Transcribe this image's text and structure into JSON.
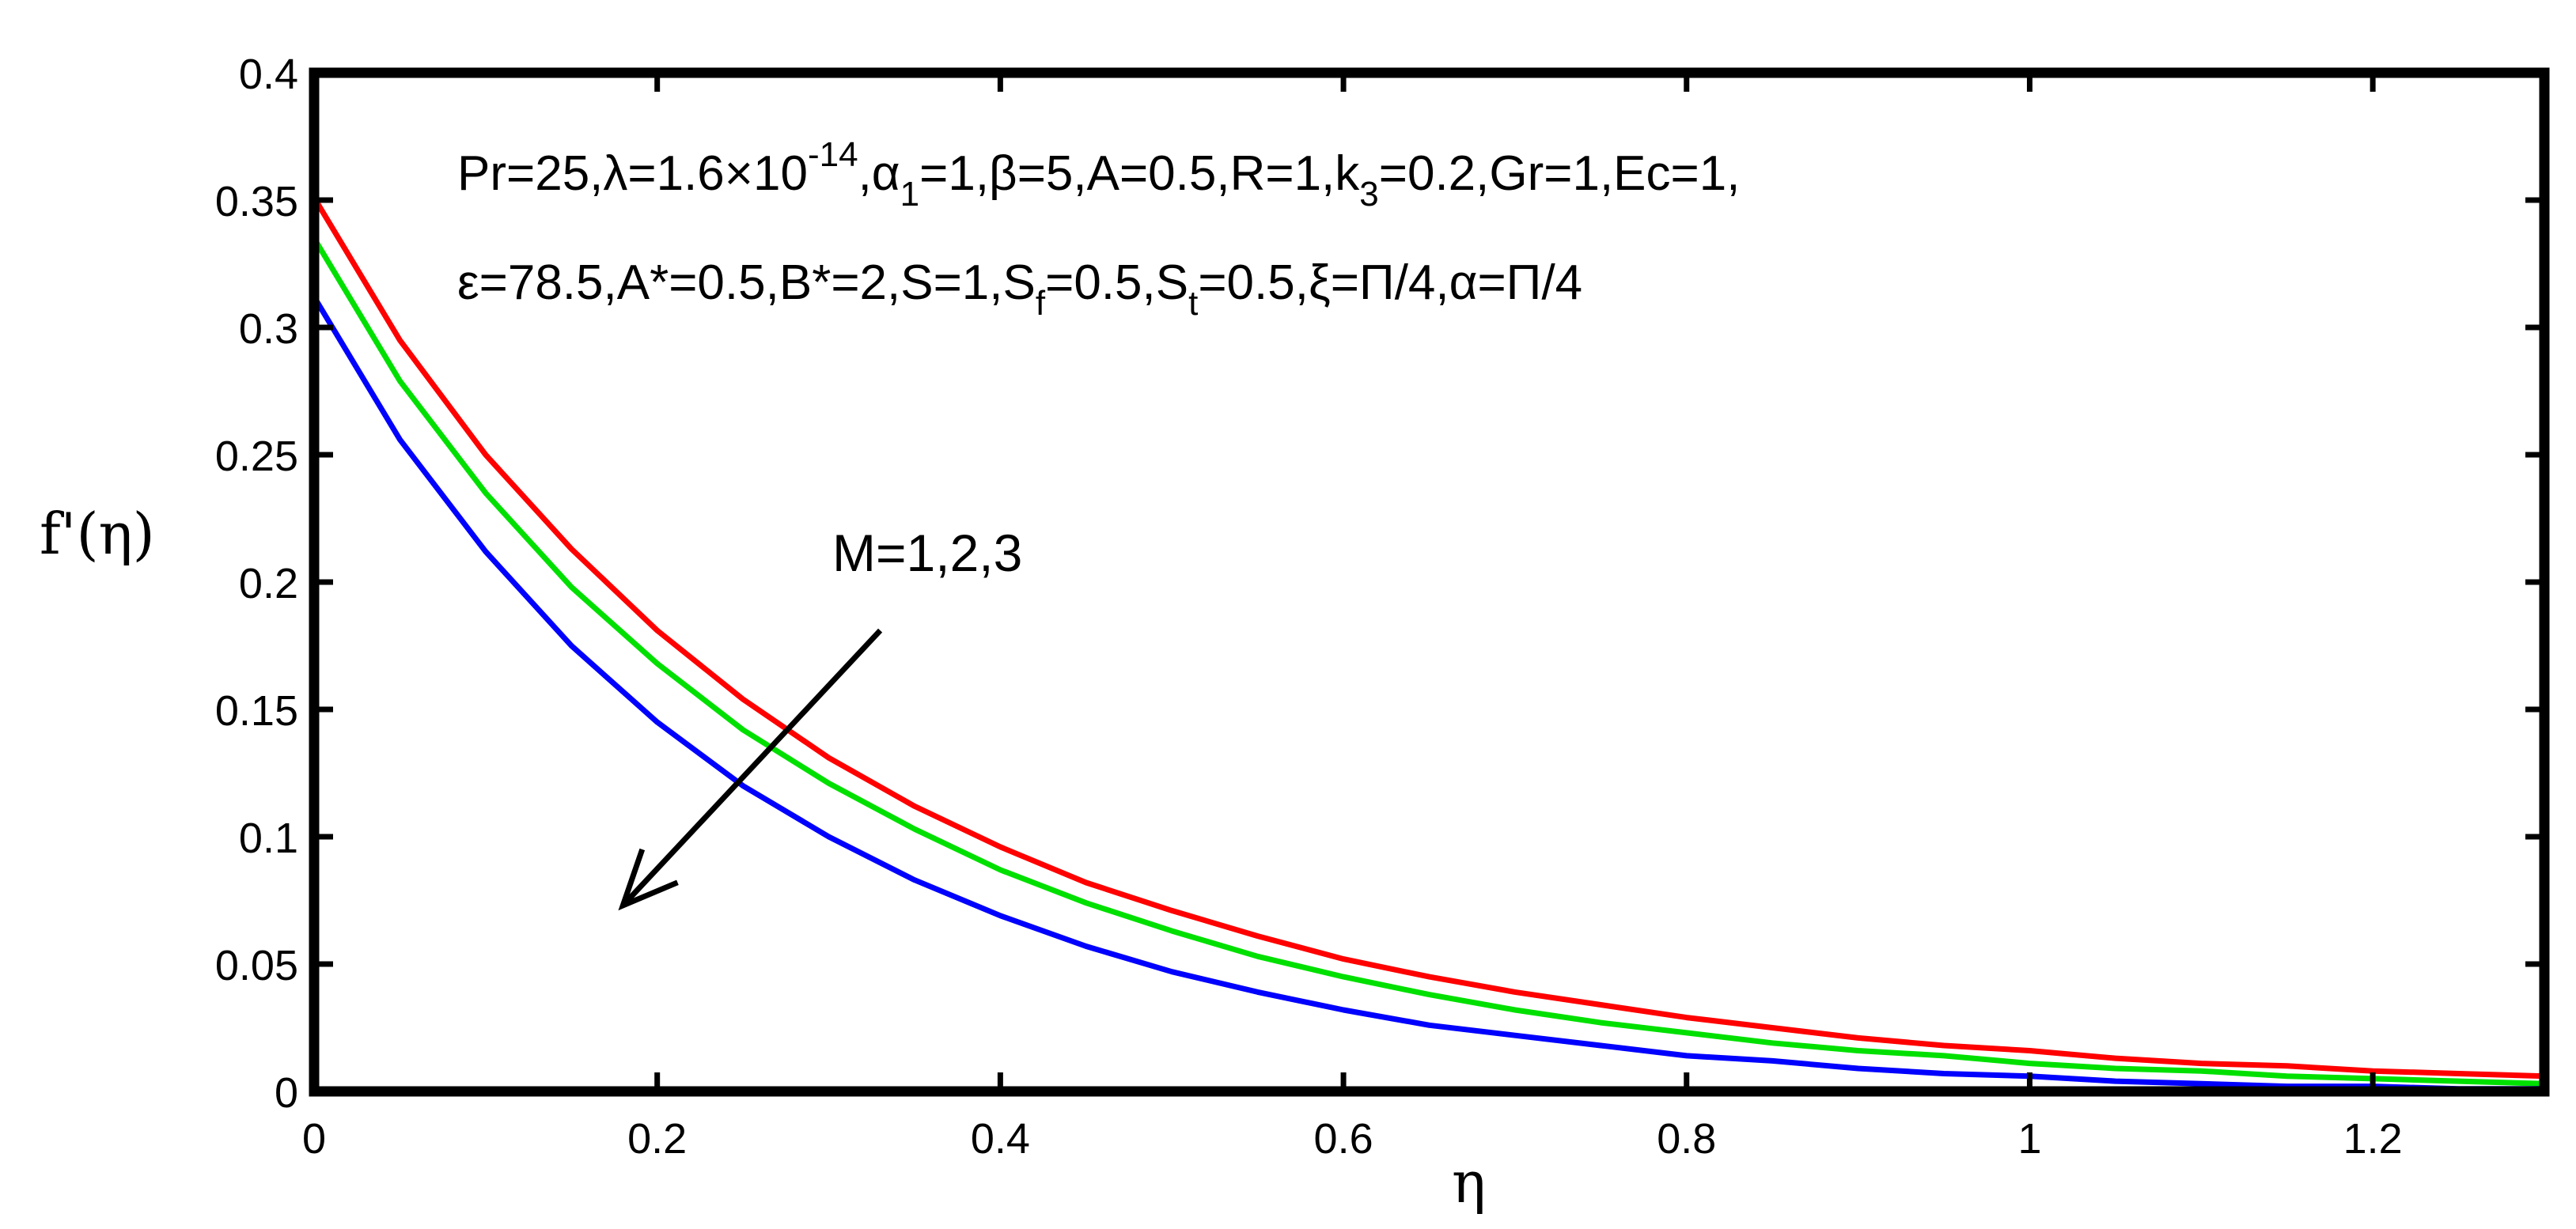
{
  "chart_data": {
    "type": "line",
    "title": "",
    "xlabel": "η",
    "ylabel": "f'(η)",
    "xlim": [
      0,
      1.3
    ],
    "ylim": [
      0,
      0.4
    ],
    "xticks": [
      0,
      0.2,
      0.4,
      0.6,
      0.8,
      1,
      1.2
    ],
    "xtick_labels": [
      "0",
      "0.2",
      "0.4",
      "0.6",
      "0.8",
      "1",
      "1.2"
    ],
    "yticks": [
      0,
      0.05,
      0.1,
      0.15,
      0.2,
      0.25,
      0.3,
      0.35,
      0.4
    ],
    "ytick_labels": [
      "0",
      "0.05",
      "0.1",
      "0.15",
      "0.2",
      "0.25",
      "0.3",
      "0.35",
      "0.4"
    ],
    "grid": false,
    "x": [
      0,
      0.05,
      0.1,
      0.15,
      0.2,
      0.25,
      0.3,
      0.35,
      0.4,
      0.45,
      0.5,
      0.55,
      0.6,
      0.65,
      0.7,
      0.75,
      0.8,
      0.85,
      0.9,
      0.95,
      1.0,
      1.05,
      1.1,
      1.15,
      1.2,
      1.25,
      1.3
    ],
    "series": [
      {
        "color": "#ff0000",
        "values": [
          0.351,
          0.295,
          0.25,
          0.213,
          0.181,
          0.154,
          0.131,
          0.112,
          0.096,
          0.082,
          0.071,
          0.061,
          0.052,
          0.045,
          0.039,
          0.034,
          0.029,
          0.025,
          0.021,
          0.018,
          0.016,
          0.013,
          0.011,
          0.01,
          0.008,
          0.007,
          0.006
        ]
      },
      {
        "color": "#00e000",
        "values": [
          0.335,
          0.279,
          0.235,
          0.198,
          0.168,
          0.142,
          0.121,
          0.103,
          0.087,
          0.074,
          0.063,
          0.053,
          0.045,
          0.038,
          0.032,
          0.027,
          0.023,
          0.019,
          0.016,
          0.014,
          0.011,
          0.009,
          0.008,
          0.006,
          0.005,
          0.004,
          0.003
        ]
      },
      {
        "color": "#0000ff",
        "values": [
          0.312,
          0.256,
          0.212,
          0.175,
          0.145,
          0.12,
          0.1,
          0.083,
          0.069,
          0.057,
          0.047,
          0.039,
          0.032,
          0.026,
          0.022,
          0.018,
          0.014,
          0.012,
          0.009,
          0.007,
          0.006,
          0.004,
          0.003,
          0.002,
          0.002,
          0.001,
          0.001
        ]
      }
    ],
    "annotation": {
      "line1_parts": [
        "Pr=25,λ=1.6×10",
        "-14",
        ",α",
        "1",
        "=1,β=5,A=0.5,R=1,k",
        "3",
        "=0.2,Gr=1,Ec=1,"
      ],
      "line2_parts": [
        "ε=78.5,A*=0.5,B*=2,S=1,S",
        "f",
        "=0.5,S",
        "t",
        "=0.5,ξ=Π/4,α=Π/4"
      ],
      "arrow_label": "M=1,2,3",
      "arrow_from": [
        0.33,
        0.181
      ],
      "arrow_to": [
        0.18,
        0.073
      ]
    }
  }
}
